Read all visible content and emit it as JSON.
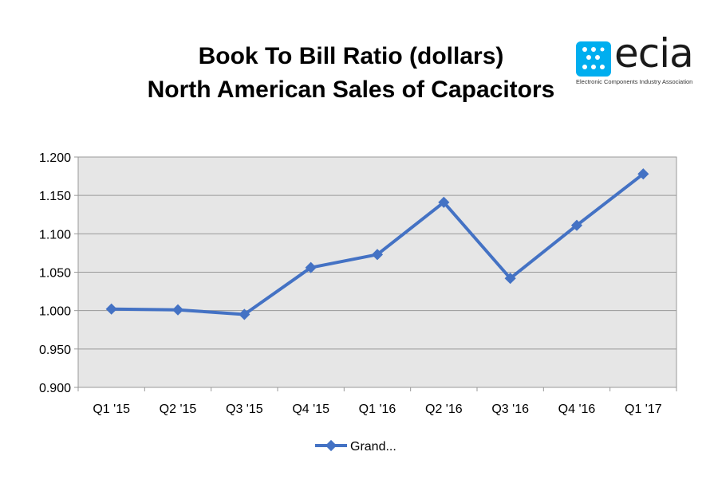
{
  "chart_data": {
    "type": "line",
    "title": [
      "Book To Bill Ratio (dollars)",
      "North American Sales of Capacitors"
    ],
    "categories": [
      "Q1 '15",
      "Q2 '15",
      "Q3 '15",
      "Q4 '15",
      "Q1 '16",
      "Q2 '16",
      "Q3 '16",
      "Q4 '16",
      "Q1 '17"
    ],
    "series": [
      {
        "name": "Grand...",
        "values": [
          1.002,
          1.001,
          0.995,
          1.056,
          1.073,
          1.141,
          1.042,
          1.111,
          1.178
        ],
        "color": "#4472C4"
      }
    ],
    "ylim": [
      0.9,
      1.2
    ],
    "yticks": [
      "0.900",
      "0.950",
      "1.000",
      "1.050",
      "1.100",
      "1.150",
      "1.200"
    ],
    "grid": true,
    "legend_position": "bottom",
    "plot_background": "#E6E6E6"
  },
  "logo": {
    "text": "ecia",
    "subtitle": "Electronic Components Industry Association",
    "color": "#00AEEF"
  }
}
